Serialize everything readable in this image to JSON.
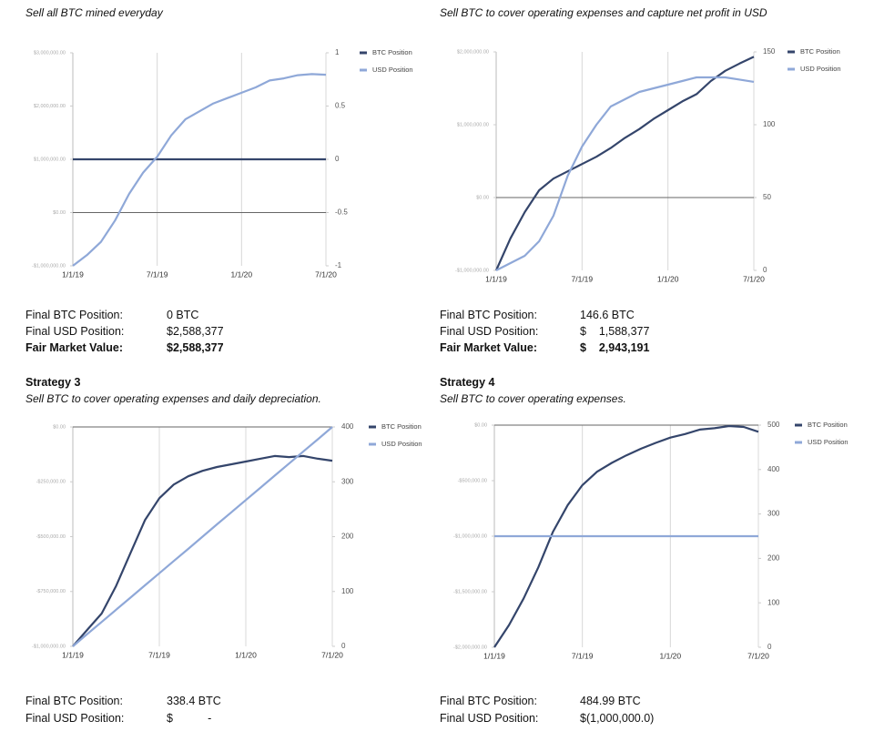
{
  "sections": [
    {
      "subtitle": "Sell all BTC mined everyday",
      "rows": [
        [
          "Final BTC Position:",
          "0 BTC"
        ],
        [
          "Final USD Position:",
          "$2,588,377"
        ],
        [
          "Fair Market Value:",
          "$2,588,377"
        ]
      ]
    },
    {
      "subtitle": "Sell BTC to cover operating expenses and capture net profit in USD",
      "rows": [
        [
          "Final BTC Position:",
          "146.6 BTC"
        ],
        [
          "Final USD Position:",
          "$    1,588,377"
        ],
        [
          "Fair Market Value:",
          "$    2,943,191"
        ]
      ]
    },
    {
      "title": "Strategy 3",
      "subtitle": "Sell BTC to cover operating expenses and daily depreciation.",
      "rows": [
        [
          "Final BTC Position:",
          "338.4 BTC"
        ],
        [
          "Final USD Position:",
          "$           -"
        ]
      ]
    },
    {
      "title": "Strategy 4",
      "subtitle": "Sell BTC to cover operating expenses.",
      "rows": [
        [
          "Final BTC Position:",
          "484.99 BTC"
        ],
        [
          "Final USD Position:",
          "$(1,000,000.0)"
        ]
      ]
    }
  ],
  "chart_data": [
    {
      "type": "line",
      "x": [
        "1/1/19",
        "2/1/19",
        "3/1/19",
        "4/1/19",
        "5/1/19",
        "6/1/19",
        "7/1/19",
        "8/1/19",
        "9/1/19",
        "10/1/19",
        "11/1/19",
        "12/1/19",
        "1/1/20",
        "2/1/20",
        "3/1/20",
        "4/1/20",
        "5/1/20",
        "6/1/20",
        "7/1/20"
      ],
      "xticks": [
        "1/1/19",
        "7/1/19",
        "1/1/20",
        "7/1/20"
      ],
      "ylim": [
        -1000000,
        3000000
      ],
      "yticks": [
        {
          "value": -1000000,
          "label": "-$1,000,000.00"
        },
        {
          "value": 0,
          "label": "$0.00"
        },
        {
          "value": 1000000,
          "label": "$1,000,000.00"
        },
        {
          "value": 2000000,
          "label": "$2,000,000.00"
        },
        {
          "value": 3000000,
          "label": "$3,000,000.00"
        }
      ],
      "y2lim": [
        -1,
        1
      ],
      "y2ticks": [
        -1,
        -0.5,
        0,
        0.5,
        1
      ],
      "series": [
        {
          "name": "BTC Position",
          "color": "#34456b",
          "axis": "y2",
          "values": [
            0,
            0,
            0,
            0,
            0,
            0,
            0,
            0,
            0,
            0,
            0,
            0,
            0,
            0,
            0,
            0,
            0,
            0,
            0
          ]
        },
        {
          "name": "USD Position",
          "color": "#8fa8d8",
          "values": [
            -1000000,
            -800000,
            -550000,
            -150000,
            350000,
            750000,
            1050000,
            1450000,
            1750000,
            1900000,
            2050000,
            2150000,
            2250000,
            2350000,
            2480000,
            2520000,
            2580000,
            2600000,
            2588377
          ]
        }
      ]
    },
    {
      "type": "line",
      "x": [
        "1/1/19",
        "2/1/19",
        "3/1/19",
        "4/1/19",
        "5/1/19",
        "6/1/19",
        "7/1/19",
        "8/1/19",
        "9/1/19",
        "10/1/19",
        "11/1/19",
        "12/1/19",
        "1/1/20",
        "2/1/20",
        "3/1/20",
        "4/1/20",
        "5/1/20",
        "6/1/20",
        "7/1/20"
      ],
      "xticks": [
        "1/1/19",
        "7/1/19",
        "1/1/20",
        "7/1/20"
      ],
      "ylim": [
        -1000000,
        2000000
      ],
      "yticks": [
        {
          "value": -1000000,
          "label": "-$1,000,000.00"
        },
        {
          "value": 0,
          "label": "$0.00"
        },
        {
          "value": 1000000,
          "label": "$1,000,000.00"
        },
        {
          "value": 2000000,
          "label": "$2,000,000.00"
        }
      ],
      "y2lim": [
        0,
        150
      ],
      "y2ticks": [
        0,
        50,
        100,
        150
      ],
      "series": [
        {
          "name": "BTC Position",
          "color": "#34456b",
          "axis": "y2",
          "values": [
            0,
            22,
            40,
            55,
            63,
            68,
            73,
            78,
            84,
            91,
            97,
            104,
            110,
            116,
            121,
            130,
            137,
            142,
            146.6
          ]
        },
        {
          "name": "USD Position",
          "color": "#8fa8d8",
          "values": [
            -1000000,
            -900000,
            -800000,
            -600000,
            -250000,
            300000,
            700000,
            1000000,
            1250000,
            1350000,
            1450000,
            1500000,
            1550000,
            1600000,
            1650000,
            1650000,
            1650000,
            1620000,
            1588377
          ]
        }
      ]
    },
    {
      "type": "line",
      "x": [
        "1/1/19",
        "2/1/19",
        "3/1/19",
        "4/1/19",
        "5/1/19",
        "6/1/19",
        "7/1/19",
        "8/1/19",
        "9/1/19",
        "10/1/19",
        "11/1/19",
        "12/1/19",
        "1/1/20",
        "2/1/20",
        "3/1/20",
        "4/1/20",
        "5/1/20",
        "6/1/20",
        "7/1/20"
      ],
      "xticks": [
        "1/1/19",
        "7/1/19",
        "1/1/20",
        "7/1/20"
      ],
      "ylim": [
        -1000000,
        0
      ],
      "yticks": [
        {
          "value": -1000000,
          "label": "-$1,000,000.00"
        },
        {
          "value": -750000,
          "label": "-$750,000.00"
        },
        {
          "value": -500000,
          "label": "-$500,000.00"
        },
        {
          "value": -250000,
          "label": "-$250,000.00"
        },
        {
          "value": 0,
          "label": "$0.00"
        }
      ],
      "y2lim": [
        0,
        400
      ],
      "y2ticks": [
        0,
        100,
        200,
        300,
        400
      ],
      "series": [
        {
          "name": "BTC Position",
          "color": "#34456b",
          "axis": "y2",
          "values": [
            0,
            30,
            60,
            110,
            170,
            230,
            270,
            295,
            310,
            320,
            327,
            332,
            337,
            342,
            347,
            345,
            347,
            342,
            338.4
          ]
        },
        {
          "name": "USD Position",
          "color": "#8fa8d8",
          "values": [
            -1000000,
            -944000,
            -889000,
            -833000,
            -778000,
            -722000,
            -667000,
            -611000,
            -556000,
            -500000,
            -444000,
            -389000,
            -333000,
            -278000,
            -222000,
            -167000,
            -111000,
            -56000,
            0
          ]
        }
      ]
    },
    {
      "type": "line",
      "x": [
        "1/1/19",
        "2/1/19",
        "3/1/19",
        "4/1/19",
        "5/1/19",
        "6/1/19",
        "7/1/19",
        "8/1/19",
        "9/1/19",
        "10/1/19",
        "11/1/19",
        "12/1/19",
        "1/1/20",
        "2/1/20",
        "3/1/20",
        "4/1/20",
        "5/1/20",
        "6/1/20",
        "7/1/20"
      ],
      "xticks": [
        "1/1/19",
        "7/1/19",
        "1/1/20",
        "7/1/20"
      ],
      "ylim": [
        -2000000,
        0
      ],
      "yticks": [
        {
          "value": -2000000,
          "label": "-$2,000,000.00"
        },
        {
          "value": -1500000,
          "label": "-$1,500,000.00"
        },
        {
          "value": -1000000,
          "label": "-$1,000,000.00"
        },
        {
          "value": -500000,
          "label": "-$500,000.00"
        },
        {
          "value": 0,
          "label": "$0.00"
        }
      ],
      "y2lim": [
        0,
        500
      ],
      "y2ticks": [
        0,
        100,
        200,
        300,
        400,
        500
      ],
      "series": [
        {
          "name": "BTC Position",
          "color": "#34456b",
          "axis": "y2",
          "values": [
            0,
            50,
            110,
            180,
            260,
            320,
            365,
            395,
            415,
            432,
            447,
            460,
            472,
            480,
            490,
            493,
            498,
            496,
            484.99
          ]
        },
        {
          "name": "USD Position",
          "color": "#8fa8d8",
          "values": [
            -1000000,
            -1000000,
            -1000000,
            -1000000,
            -1000000,
            -1000000,
            -1000000,
            -1000000,
            -1000000,
            -1000000,
            -1000000,
            -1000000,
            -1000000,
            -1000000,
            -1000000,
            -1000000,
            -1000000,
            -1000000,
            -1000000
          ]
        }
      ]
    }
  ]
}
